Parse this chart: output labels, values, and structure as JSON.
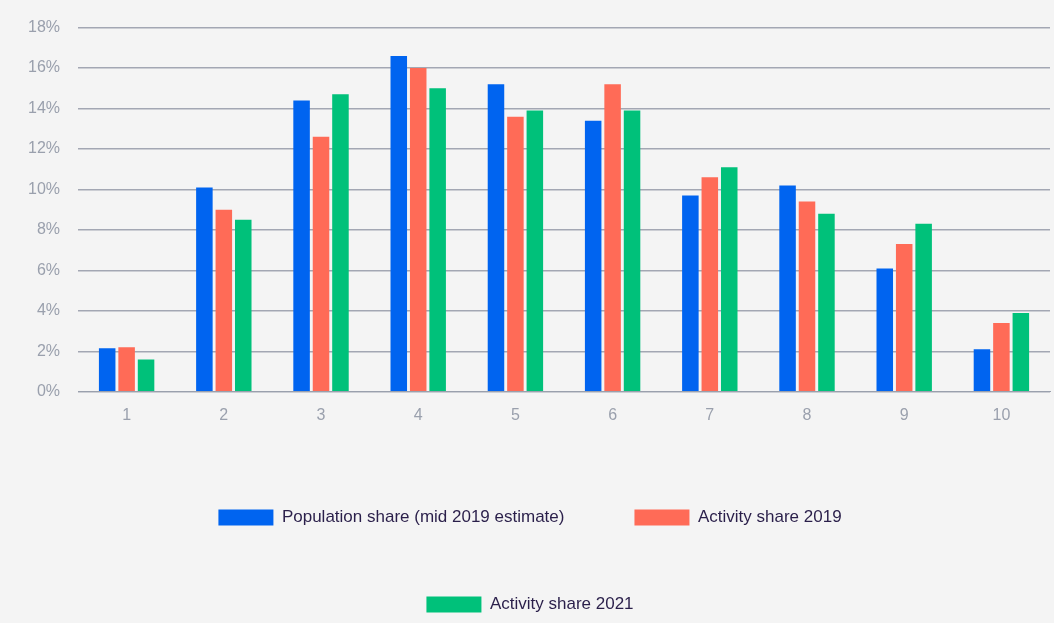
{
  "chart_data": {
    "type": "bar",
    "categories": [
      "1",
      "2",
      "3",
      "4",
      "5",
      "6",
      "7",
      "8",
      "9",
      "10"
    ],
    "series": [
      {
        "name": "Population share (mid 2019 estimate)",
        "color": "#0064f0",
        "values": [
          2.15,
          10.1,
          14.4,
          16.6,
          15.2,
          13.4,
          9.7,
          10.2,
          6.1,
          2.1
        ]
      },
      {
        "name": "Activity share 2019",
        "color": "#ff6b57",
        "values": [
          2.2,
          9.0,
          12.6,
          16.0,
          13.6,
          15.2,
          10.6,
          9.4,
          7.3,
          3.4
        ]
      },
      {
        "name": "Activity share 2021",
        "color": "#00c17a",
        "values": [
          1.6,
          8.5,
          14.7,
          15.0,
          13.9,
          13.9,
          11.1,
          8.8,
          8.3,
          3.9
        ]
      }
    ],
    "ylim": [
      0,
      18
    ],
    "yticks": [
      {
        "value": 0,
        "label": "0%"
      },
      {
        "value": 2,
        "label": "2%"
      },
      {
        "value": 4,
        "label": "4%"
      },
      {
        "value": 6,
        "label": "6%"
      },
      {
        "value": 8,
        "label": "8%"
      },
      {
        "value": 10,
        "label": "10%"
      },
      {
        "value": 12,
        "label": "12%"
      },
      {
        "value": 14,
        "label": "14%"
      },
      {
        "value": 16,
        "label": "16%"
      },
      {
        "value": 18,
        "label": "18%"
      }
    ],
    "grid": "y",
    "legend": "bottom"
  }
}
